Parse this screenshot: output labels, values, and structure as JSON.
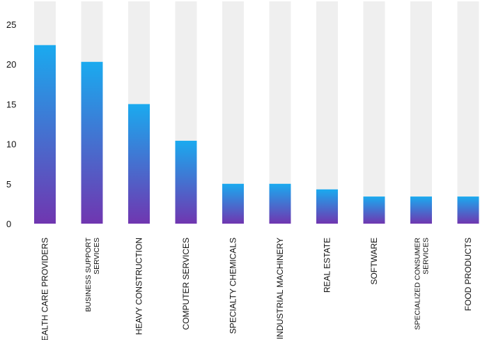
{
  "chart_data": {
    "type": "bar",
    "categories": [
      [
        "HEALTH CARE PROVIDERS"
      ],
      [
        "BUSINESS SUPPORT",
        "SERVICES"
      ],
      [
        "HEAVY CONSTRUCTION"
      ],
      [
        "COMPUTER SERVICES"
      ],
      [
        "SPECIALTY CHEMICALS"
      ],
      [
        "INDUSTRIAL MACHINERY"
      ],
      [
        "REAL ESTATE"
      ],
      [
        "SOFTWARE"
      ],
      [
        "SPECIALIZED CONSUMER",
        "SERVICES"
      ],
      [
        "FOOD PRODUCTS"
      ]
    ],
    "values": [
      22.4,
      20.3,
      15.0,
      10.4,
      5.0,
      5.0,
      4.3,
      3.4,
      3.4,
      3.4
    ],
    "yticks": [
      "0",
      "5",
      "10",
      "15",
      "20",
      "25"
    ],
    "ylim": [
      0,
      28
    ],
    "title": "",
    "xlabel": "",
    "ylabel": "",
    "grid": false,
    "colors": {
      "bar_top": "#1aaaef",
      "bar_bottom": "#7036b0",
      "track": "#efefef",
      "text": "#111111"
    }
  }
}
